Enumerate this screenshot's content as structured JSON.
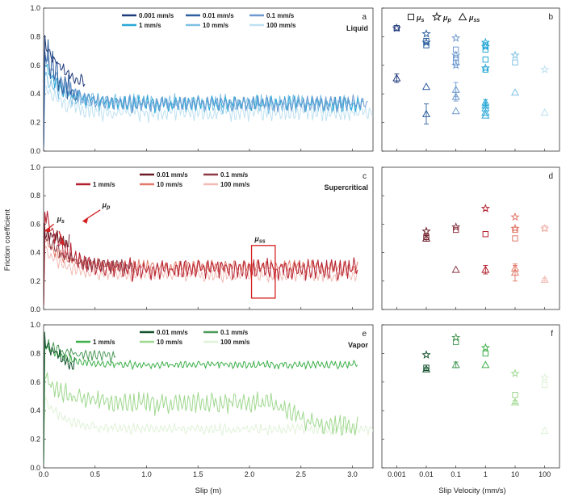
{
  "figure": {
    "ylabel": "Friction coefficient",
    "xlabel_left": "Slip (m)",
    "xlabel_right": "Slip Velocity (mm/s)"
  },
  "chart_data": [
    {
      "id": "a",
      "type": "line",
      "letter": "a",
      "phase_label": "Liquid",
      "xlim": [
        0,
        3.2
      ],
      "ylim": [
        0,
        1.0
      ],
      "xticks": [
        0.0,
        0.5,
        1.0,
        1.5,
        2.0,
        2.5,
        3.0
      ],
      "xtick_labels": [
        "0.0",
        "0.5",
        "1.0",
        "1.5",
        "2.0",
        "2.5",
        "3.0"
      ],
      "yticks": [
        0.0,
        0.2,
        0.4,
        0.6,
        0.8,
        1.0
      ],
      "ytick_labels": [
        "0.0",
        "0.2",
        "0.4",
        "0.6",
        "0.8",
        "1.0"
      ],
      "series": [
        {
          "name": "0.001 mm/s",
          "color": "#1f3a7a",
          "x_end": 0.4,
          "peak": 0.78,
          "level": 0.45,
          "amp": 0.05
        },
        {
          "name": "0.01 mm/s",
          "color": "#2e5f9e",
          "x_end": 0.33,
          "peak": 0.75,
          "level": 0.32,
          "amp": 0.12
        },
        {
          "name": "0.1 mm/s",
          "color": "#6f9bd1",
          "x_end": 3.15,
          "peak": 0.7,
          "level": 0.33,
          "amp": 0.06
        },
        {
          "name": "1 mm/s",
          "color": "#29a8d6",
          "x_end": 3.1,
          "peak": 0.62,
          "level": 0.33,
          "amp": 0.06
        },
        {
          "name": "10 mm/s",
          "color": "#7ec1e3",
          "x_end": 3.1,
          "peak": 0.55,
          "level": 0.33,
          "amp": 0.07
        },
        {
          "name": "100 mm/s",
          "color": "#bfe1f1",
          "x_end": 3.2,
          "peak": 0.45,
          "level": 0.27,
          "amp": 0.07
        }
      ]
    },
    {
      "id": "c",
      "type": "line",
      "letter": "c",
      "phase_label": "Supercritical",
      "xlim": [
        0,
        3.2
      ],
      "ylim": [
        0,
        1.0
      ],
      "xticks": [
        0.0,
        0.5,
        1.0,
        1.5,
        2.0,
        2.5,
        3.0
      ],
      "xtick_labels": [
        "0.0",
        "0.5",
        "1.0",
        "1.5",
        "2.0",
        "2.5",
        "3.0"
      ],
      "yticks": [
        0.0,
        0.2,
        0.4,
        0.6,
        0.8,
        1.0
      ],
      "ytick_labels": [
        "0.0",
        "0.2",
        "0.4",
        "0.6",
        "0.8",
        "1.0"
      ],
      "annotations": [
        "μs",
        "μp",
        "μss"
      ],
      "highlight_box": {
        "x": [
          2.02,
          2.25
        ],
        "y": [
          0.08,
          0.45
        ]
      },
      "series": [
        {
          "name": "0.01 mm/s",
          "color": "#6b1b26",
          "x_end": 0.25,
          "peak": 0.55,
          "level": 0.45,
          "amp": 0.06
        },
        {
          "name": "0.1 mm/s",
          "color": "#8e3a46",
          "x_end": 0.88,
          "peak": 0.55,
          "level": 0.3,
          "amp": 0.05
        },
        {
          "name": "1 mm/s",
          "color": "#b5202f",
          "x_end": 3.05,
          "peak": 0.72,
          "level": 0.28,
          "amp": 0.08
        },
        {
          "name": "10 mm/s",
          "color": "#e2796a",
          "x_end": 3.05,
          "peak": 0.5,
          "level": 0.3,
          "amp": 0.05
        },
        {
          "name": "100 mm/s",
          "color": "#f2bcb6",
          "x_end": 3.05,
          "peak": 0.45,
          "level": 0.24,
          "amp": 0.05
        }
      ]
    },
    {
      "id": "e",
      "type": "line",
      "letter": "e",
      "phase_label": "Vapor",
      "xlim": [
        0,
        3.2
      ],
      "ylim": [
        0,
        1.0
      ],
      "xticks": [
        0.0,
        0.5,
        1.0,
        1.5,
        2.0,
        2.5,
        3.0
      ],
      "xtick_labels": [
        "0.0",
        "0.5",
        "1.0",
        "1.5",
        "2.0",
        "2.5",
        "3.0"
      ],
      "yticks": [
        0.0,
        0.2,
        0.4,
        0.6,
        0.8,
        1.0
      ],
      "ytick_labels": [
        "0.0",
        "0.2",
        "0.4",
        "0.6",
        "0.8",
        "1.0"
      ],
      "series": [
        {
          "name": "0.01 mm/s",
          "color": "#14532d",
          "x_end": 0.3,
          "peak": 0.9,
          "level": 0.68,
          "amp": 0.06
        },
        {
          "name": "0.1 mm/s",
          "color": "#4e9a5a",
          "x_end": 0.7,
          "peak": 0.88,
          "level": 0.78,
          "amp": 0.04
        },
        {
          "name": "1 mm/s",
          "color": "#3db04b",
          "x_end": 3.05,
          "peak": 0.87,
          "level": 0.72,
          "amp": 0.03
        },
        {
          "name": "10 mm/s",
          "color": "#9fd88f",
          "x_end": 3.05,
          "peak": 0.65,
          "level": 0.45,
          "amp": 0.08
        },
        {
          "name": "100 mm/s",
          "color": "#e0f2d8",
          "x_end": 3.2,
          "peak": 0.5,
          "level": 0.27,
          "amp": 0.04
        }
      ]
    },
    {
      "id": "b",
      "type": "scatter",
      "letter": "b",
      "x_categories": [
        "0.001",
        "0.01",
        "0.1",
        "1",
        "10",
        "100"
      ],
      "ylim": [
        0,
        1.0
      ],
      "legend": [
        "μs",
        "μp",
        "μss"
      ],
      "points": [
        {
          "x": "0.001",
          "color": "#1f3a7a",
          "mu_s": [
            0.86
          ],
          "mu_p": [
            0.86
          ],
          "mu_ss": [
            0.51
          ],
          "err": [
            0.03
          ]
        },
        {
          "x": "0.01",
          "color": "#2e5f9e",
          "mu_s": [
            0.77,
            0.74
          ],
          "mu_p": [
            0.76,
            0.82
          ],
          "mu_ss": [
            0.45,
            0.26
          ],
          "err": [
            0,
            0.07
          ]
        },
        {
          "x": "0.1",
          "color": "#6f9bd1",
          "mu_s": [
            0.71,
            0.62,
            0.65
          ],
          "mu_p": [
            0.79,
            0.67,
            0.6
          ],
          "mu_ss": [
            0.43,
            0.38,
            0.28
          ],
          "err": [
            0.05,
            0.03,
            0
          ]
        },
        {
          "x": "1",
          "color": "#29a8d6",
          "mu_s": [
            0.74,
            0.71,
            0.64,
            0.57
          ],
          "mu_p": [
            0.76,
            0.73,
            0.58
          ],
          "mu_ss": [
            0.34,
            0.32,
            0.3,
            0.27,
            0.25
          ],
          "err": [
            0.02,
            0.02,
            0,
            0,
            0
          ]
        },
        {
          "x": "10",
          "color": "#7ec1e3",
          "mu_s": [
            0.62
          ],
          "mu_p": [
            0.67
          ],
          "mu_ss": [
            0.41
          ],
          "err": [
            0
          ]
        },
        {
          "x": "100",
          "color": "#bfe1f1",
          "mu_s": [],
          "mu_p": [
            0.57
          ],
          "mu_ss": [
            0.27
          ],
          "err": [
            0
          ]
        }
      ]
    },
    {
      "id": "d",
      "type": "scatter",
      "letter": "d",
      "x_categories": [
        "0.001",
        "0.01",
        "0.1",
        "1",
        "10",
        "100"
      ],
      "ylim": [
        0,
        1.0
      ],
      "points": [
        {
          "x": "0.01",
          "color": "#6b1b26",
          "mu_s": [
            0.51
          ],
          "mu_p": [
            0.55
          ],
          "mu_ss": [
            0.5
          ],
          "err": [
            0.02
          ]
        },
        {
          "x": "0.1",
          "color": "#8e3a46",
          "mu_s": [
            0.56
          ],
          "mu_p": [
            0.58
          ],
          "mu_ss": [
            0.28
          ],
          "err": [
            0
          ]
        },
        {
          "x": "1",
          "color": "#b5202f",
          "mu_s": [
            0.53
          ],
          "mu_p": [
            0.71
          ],
          "mu_ss": [
            0.28
          ],
          "err": [
            0.03
          ]
        },
        {
          "x": "10",
          "color": "#e2796a",
          "mu_s": [
            0.56,
            0.5
          ],
          "mu_p": [
            0.65,
            0.57
          ],
          "mu_ss": [
            0.29,
            0.26
          ],
          "err": [
            0.02,
            0.06
          ]
        },
        {
          "x": "100",
          "color": "#f2bcb6",
          "mu_s": [
            0.57
          ],
          "mu_p": [
            0.57
          ],
          "mu_ss": [
            0.21
          ],
          "err": [
            0.01
          ]
        }
      ]
    },
    {
      "id": "f",
      "type": "scatter",
      "letter": "f",
      "x_categories": [
        "0.001",
        "0.01",
        "0.1",
        "1",
        "10",
        "100"
      ],
      "ylim": [
        0,
        1.0
      ],
      "points": [
        {
          "x": "0.01",
          "color": "#14532d",
          "mu_s": [
            0.7
          ],
          "mu_p": [
            0.79
          ],
          "mu_ss": [
            0.69
          ],
          "err": [
            0.01
          ]
        },
        {
          "x": "0.1",
          "color": "#4e9a5a",
          "mu_s": [
            0.88
          ],
          "mu_p": [
            0.91
          ],
          "mu_ss": [
            0.72
          ],
          "err": [
            0.02
          ]
        },
        {
          "x": "1",
          "color": "#3db04b",
          "mu_s": [
            0.8
          ],
          "mu_p": [
            0.84
          ],
          "mu_ss": [
            0.72
          ],
          "err": [
            0
          ]
        },
        {
          "x": "10",
          "color": "#9fd88f",
          "mu_s": [
            0.51
          ],
          "mu_p": [
            0.66
          ],
          "mu_ss": [
            0.46
          ],
          "err": [
            0.01
          ]
        },
        {
          "x": "100",
          "color": "#e0f2d8",
          "mu_s": [
            0.58
          ],
          "mu_p": [
            0.63
          ],
          "mu_ss": [
            0.26
          ],
          "err": [
            0
          ]
        }
      ]
    }
  ]
}
